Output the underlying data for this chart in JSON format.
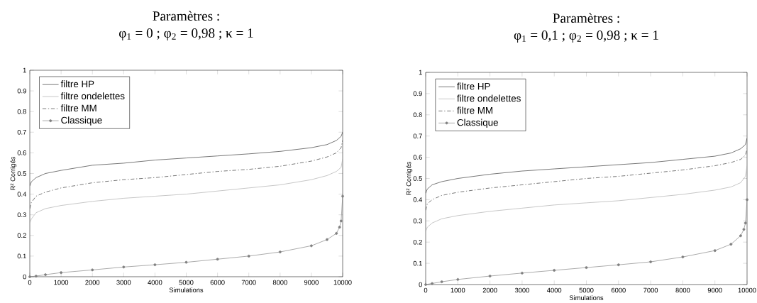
{
  "chart_data": [
    {
      "type": "line",
      "title": "Paramètres :",
      "subtitle": "φ$_{1}$ = 0 ; φ$_{2}$ = 0,98 ; κ = 1",
      "xlabel": "Simulations",
      "ylabel": "R² Corrigés",
      "xlim": [
        0,
        10000
      ],
      "ylim": [
        0,
        1
      ],
      "xticks": [
        0,
        1000,
        2000,
        3000,
        4000,
        5000,
        6000,
        7000,
        8000,
        9000,
        10000
      ],
      "yticks": [
        0,
        0.1,
        0.2,
        0.3,
        0.4,
        0.5,
        0.6,
        0.7,
        0.8,
        0.9,
        1
      ],
      "grid": false,
      "legend": "top left",
      "x": [
        0,
        50,
        200,
        500,
        1000,
        2000,
        3000,
        4000,
        5000,
        6000,
        7000,
        8000,
        9000,
        9500,
        9800,
        9950,
        10000
      ],
      "series": [
        {
          "name": "filtre HP",
          "color": "#333333",
          "line_style": "solid",
          "marker": "none",
          "values": [
            0.44,
            0.46,
            0.48,
            0.5,
            0.515,
            0.54,
            0.55,
            0.565,
            0.575,
            0.585,
            0.595,
            0.607,
            0.625,
            0.64,
            0.66,
            0.68,
            0.7
          ]
        },
        {
          "name": "filtre ondelettes",
          "color": "#aaaaaa",
          "line_style": "solid",
          "marker": "none",
          "values": [
            0.26,
            0.28,
            0.31,
            0.33,
            0.345,
            0.365,
            0.38,
            0.39,
            0.4,
            0.415,
            0.43,
            0.445,
            0.47,
            0.49,
            0.51,
            0.53,
            0.57
          ]
        },
        {
          "name": "filtre MM",
          "color": "#333333",
          "line_style": "dashdot",
          "marker": "none",
          "values": [
            0.33,
            0.36,
            0.39,
            0.41,
            0.43,
            0.455,
            0.47,
            0.48,
            0.495,
            0.51,
            0.52,
            0.535,
            0.56,
            0.58,
            0.6,
            0.625,
            0.66
          ]
        },
        {
          "name": "Classique",
          "color": "#808080",
          "line_style": "solid",
          "marker": "circle",
          "x": [
            0,
            200,
            500,
            1000,
            2000,
            3000,
            4000,
            5000,
            6000,
            7000,
            8000,
            9000,
            9500,
            9800,
            9900,
            9950,
            10000
          ],
          "values": [
            0,
            0.003,
            0.01,
            0.02,
            0.033,
            0.047,
            0.058,
            0.07,
            0.085,
            0.1,
            0.12,
            0.15,
            0.18,
            0.21,
            0.24,
            0.27,
            0.39
          ]
        }
      ]
    },
    {
      "type": "line",
      "title": "Paramètres :",
      "subtitle": "φ$_{1}$ = 0,1 ; φ$_{2}$ = 0,98 ; κ = 1",
      "xlabel": "Simulations",
      "ylabel": "R² Corrigés",
      "xlim": [
        0,
        10000
      ],
      "ylim": [
        0,
        1
      ],
      "xticks": [
        0,
        1000,
        2000,
        3000,
        4000,
        5000,
        6000,
        7000,
        8000,
        9000,
        10000
      ],
      "yticks": [
        0,
        0.1,
        0.2,
        0.3,
        0.4,
        0.5,
        0.6,
        0.7,
        0.8,
        0.9,
        1
      ],
      "grid": false,
      "legend": "top left",
      "x": [
        0,
        50,
        200,
        500,
        1000,
        2000,
        3000,
        4000,
        5000,
        6000,
        7000,
        8000,
        9000,
        9500,
        9800,
        9950,
        10000
      ],
      "series": [
        {
          "name": "filtre HP",
          "color": "#333333",
          "line_style": "solid",
          "marker": "none",
          "values": [
            0.43,
            0.45,
            0.47,
            0.485,
            0.5,
            0.52,
            0.535,
            0.545,
            0.555,
            0.565,
            0.575,
            0.59,
            0.605,
            0.62,
            0.64,
            0.66,
            0.69
          ]
        },
        {
          "name": "filtre ondelettes",
          "color": "#aaaaaa",
          "line_style": "solid",
          "marker": "none",
          "values": [
            0.25,
            0.27,
            0.29,
            0.31,
            0.325,
            0.345,
            0.36,
            0.375,
            0.385,
            0.395,
            0.41,
            0.425,
            0.445,
            0.46,
            0.48,
            0.51,
            0.56
          ]
        },
        {
          "name": "filtre MM",
          "color": "#333333",
          "line_style": "dashdot",
          "marker": "none",
          "values": [
            0.35,
            0.38,
            0.4,
            0.42,
            0.435,
            0.455,
            0.47,
            0.485,
            0.5,
            0.51,
            0.525,
            0.54,
            0.56,
            0.575,
            0.59,
            0.61,
            0.64
          ]
        },
        {
          "name": "Classique",
          "color": "#808080",
          "line_style": "solid",
          "marker": "circle",
          "x": [
            0,
            200,
            500,
            1000,
            2000,
            3000,
            4000,
            5000,
            6000,
            7000,
            8000,
            9000,
            9500,
            9800,
            9900,
            9950,
            10000
          ],
          "values": [
            0,
            0.005,
            0.013,
            0.024,
            0.04,
            0.054,
            0.067,
            0.08,
            0.093,
            0.107,
            0.13,
            0.16,
            0.19,
            0.23,
            0.26,
            0.29,
            0.4
          ]
        }
      ]
    }
  ]
}
